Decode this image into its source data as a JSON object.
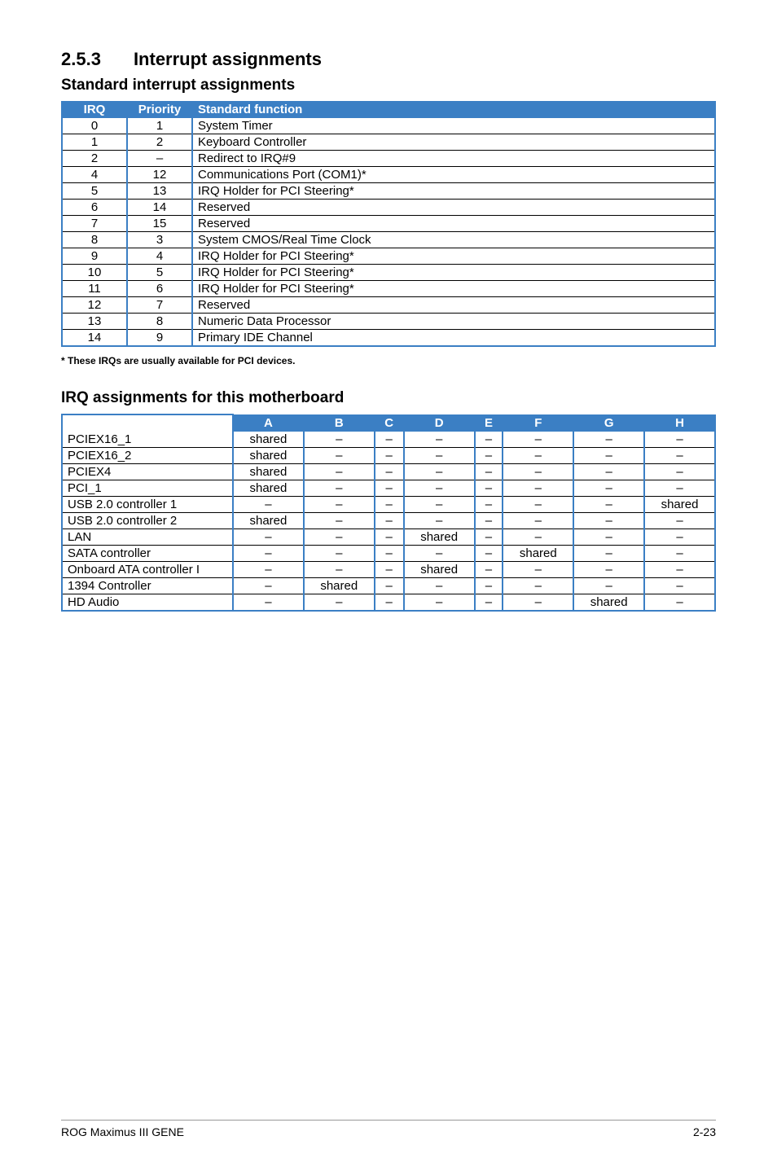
{
  "section": {
    "number": "2.5.3",
    "title": "Interrupt assignments"
  },
  "table1": {
    "title": "Standard interrupt assignments",
    "headers": [
      "IRQ",
      "Priority",
      "Standard function"
    ],
    "rows": [
      [
        "0",
        "1",
        "System Timer"
      ],
      [
        "1",
        "2",
        "Keyboard Controller"
      ],
      [
        "2",
        "–",
        "Redirect to IRQ#9"
      ],
      [
        "4",
        "12",
        "Communications Port (COM1)*"
      ],
      [
        "5",
        "13",
        "IRQ Holder for PCI Steering*"
      ],
      [
        "6",
        "14",
        "Reserved"
      ],
      [
        "7",
        "15",
        "Reserved"
      ],
      [
        "8",
        "3",
        "System CMOS/Real Time Clock"
      ],
      [
        "9",
        "4",
        "IRQ Holder for PCI Steering*"
      ],
      [
        "10",
        "5",
        "IRQ Holder for PCI Steering*"
      ],
      [
        "11",
        "6",
        "IRQ Holder for PCI Steering*"
      ],
      [
        "12",
        "7",
        "Reserved"
      ],
      [
        "13",
        "8",
        "Numeric Data Processor"
      ],
      [
        "14",
        "9",
        "Primary IDE Channel"
      ]
    ],
    "footnote": "* These IRQs are usually available for PCI devices."
  },
  "table2": {
    "title": "IRQ assignments for this motherboard",
    "headers": [
      "",
      "A",
      "B",
      "C",
      "D",
      "E",
      "F",
      "G",
      "H"
    ],
    "rows": [
      [
        "PCIEX16_1",
        "shared",
        "–",
        "–",
        "–",
        "–",
        "–",
        "–",
        "–"
      ],
      [
        "PCIEX16_2",
        "shared",
        "–",
        "–",
        "–",
        "–",
        "–",
        "–",
        "–"
      ],
      [
        "PCIEX4",
        "shared",
        "–",
        "–",
        "–",
        "–",
        "–",
        "–",
        "–"
      ],
      [
        "PCI_1",
        "shared",
        "–",
        "–",
        "–",
        "–",
        "–",
        "–",
        "–"
      ],
      [
        "USB 2.0 controller 1",
        "–",
        "–",
        "–",
        "–",
        "–",
        "–",
        "–",
        "shared"
      ],
      [
        "USB 2.0 controller 2",
        "shared",
        "–",
        "–",
        "–",
        "–",
        "–",
        "–",
        "–"
      ],
      [
        "LAN",
        "–",
        "–",
        "–",
        "shared",
        "–",
        "–",
        "–",
        "–"
      ],
      [
        "SATA controller",
        "–",
        "–",
        "–",
        "–",
        "–",
        "shared",
        "–",
        "–"
      ],
      [
        "Onboard ATA controller I",
        "–",
        "–",
        "–",
        "shared",
        "–",
        "–",
        "–",
        "–"
      ],
      [
        "1394 Controller",
        "–",
        "shared",
        "–",
        "–",
        "–",
        "–",
        "–",
        "–"
      ],
      [
        "HD Audio",
        "–",
        "–",
        "–",
        "–",
        "–",
        "–",
        "shared",
        "–"
      ]
    ]
  },
  "footer": {
    "left": "ROG Maximus III GENE",
    "right": "2-23"
  }
}
